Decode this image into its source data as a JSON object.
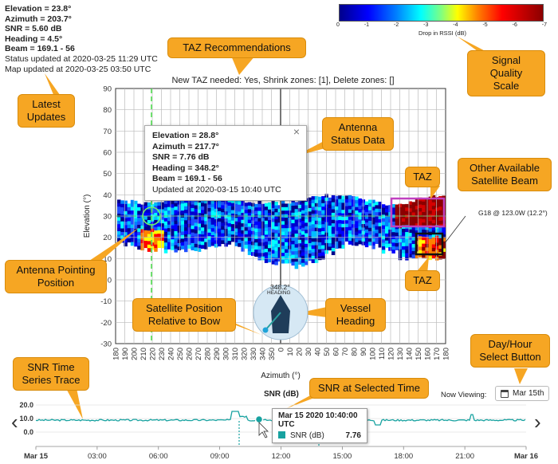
{
  "status": {
    "elevation": "Elevation = 23.8°",
    "azimuth": "Azimuth = 203.7°",
    "snr": "SNR = 5.60 dB",
    "heading": "Heading = 4.5°",
    "beam": "Beam = 169.1 - 56",
    "status_updated": "Status updated at 2020-03-25 11:29 UTC",
    "map_updated": "Map updated at 2020-03-25 03:50 UTC"
  },
  "colorbar": {
    "ticks": [
      "0",
      "-1",
      "-2",
      "-3",
      "-4",
      "-5",
      "-6",
      "-7"
    ],
    "label": "Drop in RSSI (dB)"
  },
  "callouts": {
    "taz_recommendations": "TAZ Recommendations",
    "signal_quality_1": "Signal Quality",
    "signal_quality_2": "Scale",
    "latest_updates_1": "Latest",
    "latest_updates_2": "Updates",
    "antenna_status_1": "Antenna",
    "antenna_status_2": "Status Data",
    "taz_1": "TAZ",
    "taz_2": "TAZ",
    "other_beam_1": "Other Available",
    "other_beam_2": "Satellite Beam",
    "antenna_pointing_1": "Antenna Pointing",
    "antenna_pointing_2": "Position",
    "satellite_position_1": "Satellite Position",
    "satellite_position_2": "Relative to Bow",
    "vessel_heading_1": "Vessel",
    "vessel_heading_2": "Heading",
    "day_hour_1": "Day/Hour",
    "day_hour_2": "Select Button",
    "snr_trace_1": "SNR Time",
    "snr_trace_2": "Series Trace",
    "snr_selected": "SNR at Selected Time"
  },
  "plot": {
    "title": "New TAZ needed: Yes, Shrink zones: [1], Delete zones: []",
    "xlabel": "Azimuth (°)",
    "ylabel": "Elevation (°)",
    "yticks": [
      "90",
      "80",
      "70",
      "60",
      "50",
      "40",
      "30",
      "20",
      "10",
      "0",
      "-10",
      "-20",
      "-30"
    ],
    "xticks": [
      "180",
      "190",
      "200",
      "210",
      "220",
      "230",
      "240",
      "250",
      "260",
      "270",
      "280",
      "290",
      "300",
      "310",
      "320",
      "330",
      "340",
      "350",
      "0",
      "10",
      "20",
      "30",
      "40",
      "50",
      "60",
      "70",
      "80",
      "90",
      "100",
      "110",
      "120",
      "130",
      "140",
      "150",
      "160",
      "170",
      "180"
    ],
    "beam_label": "G18 @ 123.0W (12.2°)"
  },
  "popup": {
    "elevation": "Elevation = 28.8°",
    "azimuth": "Azimuth = 217.7°",
    "snr": "SNR = 7.76 dB",
    "heading": "Heading = 348.2°",
    "beam": "Beam = 169.1 - 56",
    "updated": "Updated at 2020-03-15 10:40 UTC",
    "close": "×"
  },
  "compass": {
    "heading_value": "348.2°",
    "heading_label": "HEADING"
  },
  "timeseries": {
    "title": "SNR (dB)",
    "now_viewing": "Now Viewing:",
    "day_button": "Mar 15th",
    "yticks": [
      "20.0",
      "10.0",
      "0.0"
    ],
    "xticks": [
      "Mar 15",
      "03:00",
      "06:00",
      "09:00",
      "12:00",
      "15:00",
      "18:00",
      "21:00",
      "Mar 16"
    ],
    "tooltip_time": "Mar 15 2020 10:40:00 UTC",
    "tooltip_series": "SNR (dB)",
    "tooltip_value": "7.76",
    "prev": "‹",
    "next": "›"
  }
}
